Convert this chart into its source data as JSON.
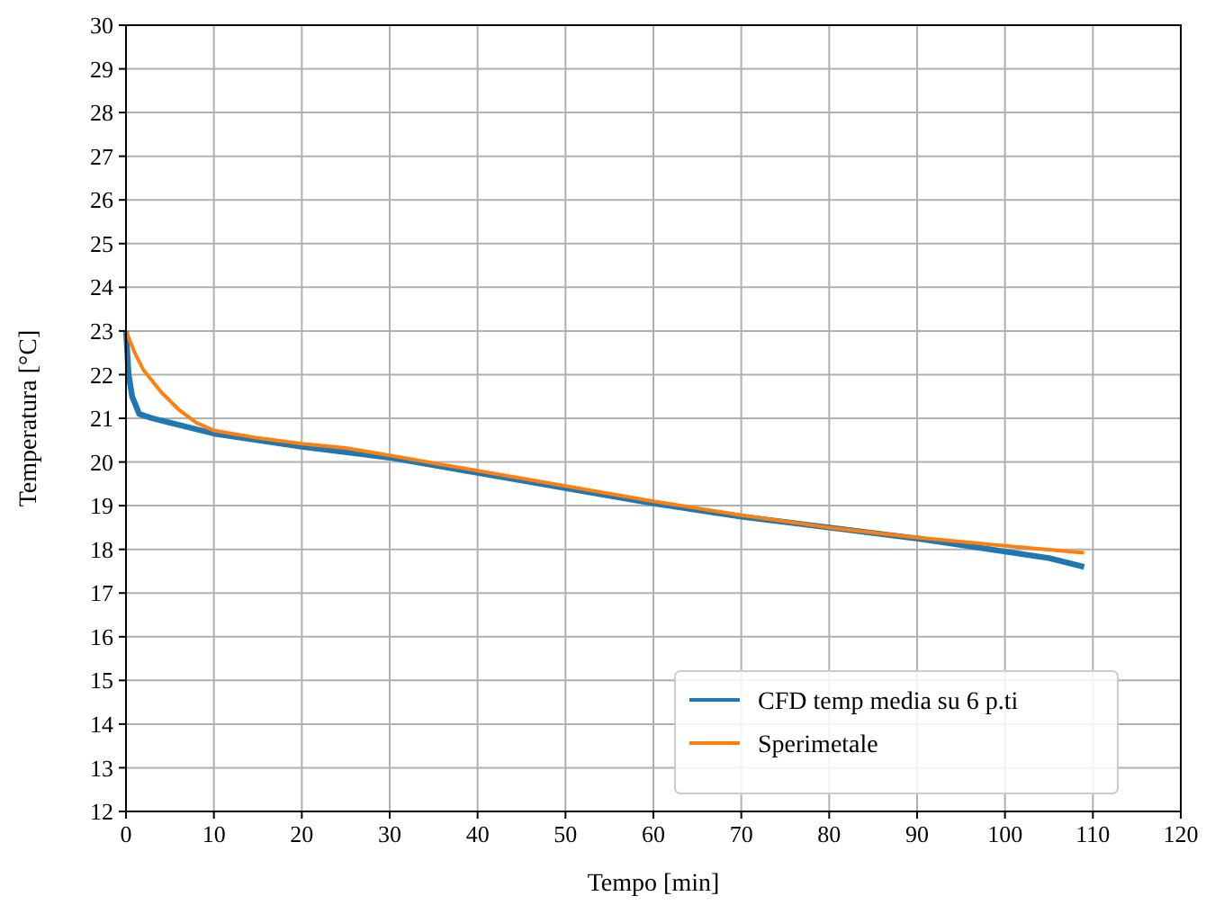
{
  "chart_data": {
    "type": "line",
    "xlabel": "Tempo [min]",
    "ylabel": "Temperatura [°C]",
    "xlim": [
      0,
      120
    ],
    "xticks": [
      0,
      10,
      20,
      30,
      40,
      50,
      60,
      70,
      80,
      90,
      100,
      110,
      120
    ],
    "ylim": [
      12,
      30
    ],
    "yticks": [
      12,
      13,
      14,
      15,
      16,
      17,
      18,
      19,
      20,
      21,
      22,
      23,
      24,
      25,
      26,
      27,
      28,
      29,
      30
    ],
    "grid": true,
    "legend": "bottom right",
    "line_style": "solid",
    "marker": "none",
    "series": [
      {
        "name": "CFD temp media su 6 p.ti",
        "color": "#1f77b4",
        "x": [
          0,
          0.3,
          0.7,
          1.5,
          3,
          5,
          10,
          20,
          30,
          40,
          50,
          60,
          70,
          80,
          90,
          100,
          105,
          109
        ],
        "values": [
          23,
          22,
          21.5,
          21.1,
          21,
          20.9,
          20.65,
          20.35,
          20.1,
          19.75,
          19.4,
          19.05,
          18.75,
          18.5,
          18.25,
          17.95,
          17.8,
          17.6
        ]
      },
      {
        "name": "Sperimetale",
        "color": "#ff7f0e",
        "x": [
          0,
          1,
          2,
          4,
          6,
          8,
          10,
          15,
          20,
          25,
          30,
          40,
          50,
          60,
          70,
          80,
          90,
          100,
          109
        ],
        "values": [
          23,
          22.5,
          22.1,
          21.6,
          21.2,
          20.9,
          20.72,
          20.55,
          20.42,
          20.32,
          20.15,
          19.8,
          19.45,
          19.1,
          18.78,
          18.5,
          18.27,
          18.08,
          17.92
        ]
      }
    ]
  }
}
